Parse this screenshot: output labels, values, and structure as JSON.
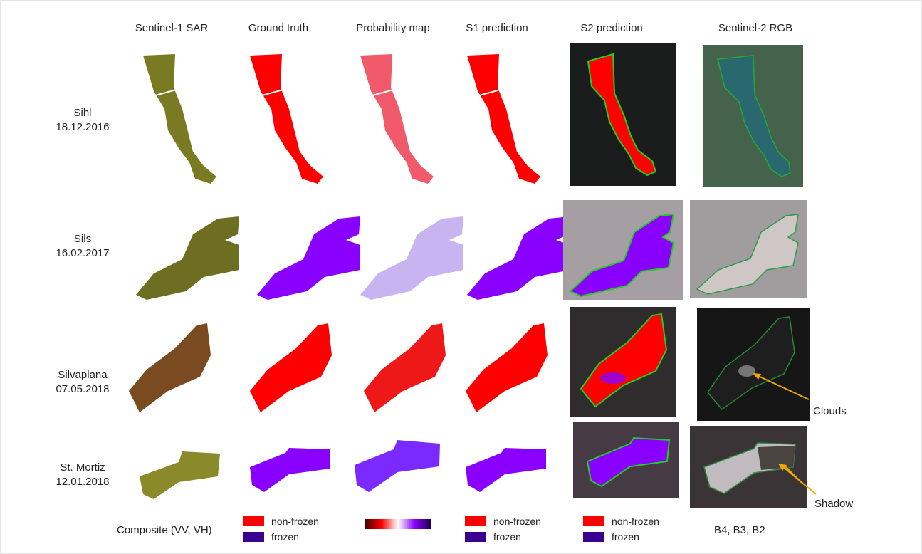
{
  "columns": [
    "Sentinel-1 SAR",
    "Ground truth",
    "Probability map",
    "S1 prediction",
    "S2 prediction",
    "Sentinel-2 RGB"
  ],
  "rows": [
    {
      "name": "Sihl",
      "date": "18.12.2016"
    },
    {
      "name": "Sils",
      "date": "16.02.2017"
    },
    {
      "name": "Silvaplana",
      "date": "07.05.2018"
    },
    {
      "name": "St. Mortiz",
      "date": "12.01.2018"
    }
  ],
  "annotations": {
    "clouds": "Clouds",
    "shadow": "Shadow"
  },
  "footer": {
    "sar": "Composite (VV, VH)",
    "rgb": "B4, B3, B2",
    "legend_nonfrozen": "non-frozen",
    "legend_frozen": "frozen"
  },
  "colors": {
    "nonfrozen": "#ff0000",
    "frozen": "#8a00ff",
    "legend_frozen": "#3a0090",
    "sar": "#7a7a22",
    "outline": "#22cc22",
    "arrow": "#f0a800"
  }
}
